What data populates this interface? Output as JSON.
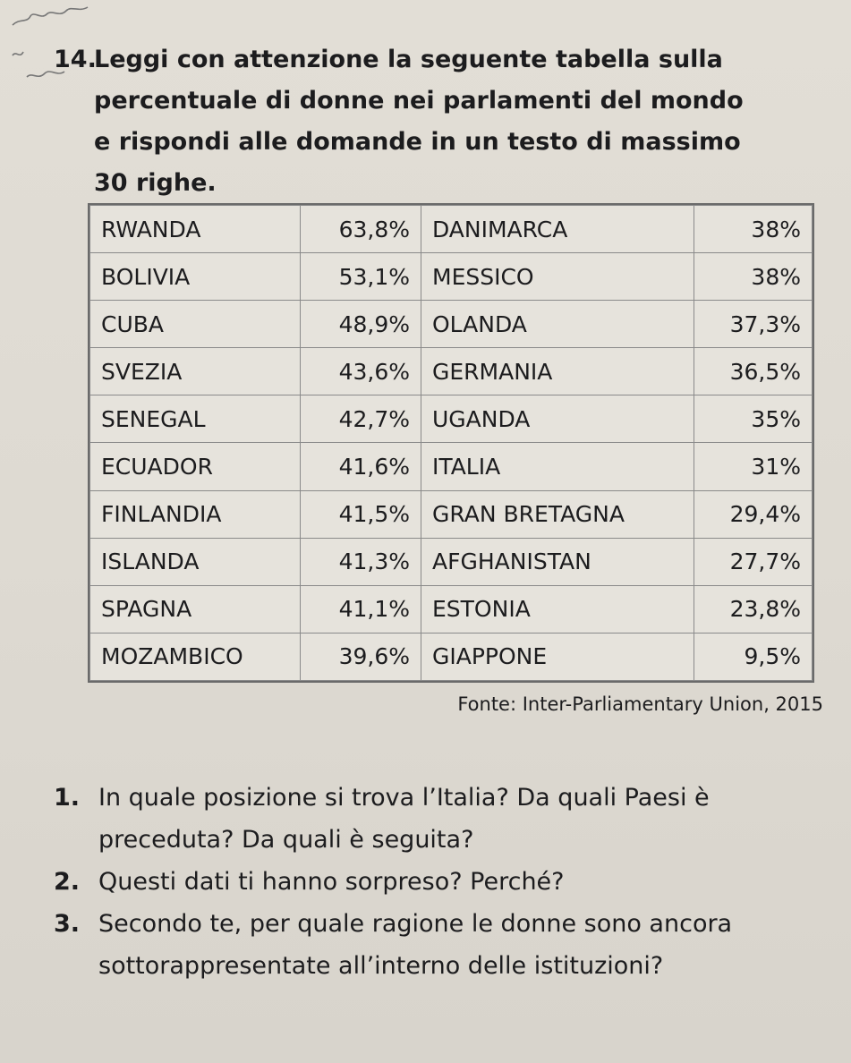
{
  "exercise": {
    "number": "14.",
    "lines": [
      "Leggi con attenzione la seguente tabella sulla",
      "percentuale di donne nei parlamenti del mondo",
      "e rispondi alle domande in un testo di massimo",
      "30 righe."
    ]
  },
  "table": {
    "rows": [
      {
        "left_country": "RWANDA",
        "left_value": "63,8%",
        "right_country": "DANIMARCA",
        "right_value": "38%"
      },
      {
        "left_country": "BOLIVIA",
        "left_value": "53,1%",
        "right_country": "MESSICO",
        "right_value": "38%"
      },
      {
        "left_country": "CUBA",
        "left_value": "48,9%",
        "right_country": "OLANDA",
        "right_value": "37,3%"
      },
      {
        "left_country": "SVEZIA",
        "left_value": "43,6%",
        "right_country": "GERMANIA",
        "right_value": "36,5%"
      },
      {
        "left_country": "SENEGAL",
        "left_value": "42,7%",
        "right_country": "UGANDA",
        "right_value": "35%"
      },
      {
        "left_country": "ECUADOR",
        "left_value": "41,6%",
        "right_country": "ITALIA",
        "right_value": "31%"
      },
      {
        "left_country": "FINLANDIA",
        "left_value": "41,5%",
        "right_country": "GRAN BRETAGNA",
        "right_value": "29,4%"
      },
      {
        "left_country": "ISLANDA",
        "left_value": "41,3%",
        "right_country": "AFGHANISTAN",
        "right_value": "27,7%"
      },
      {
        "left_country": "SPAGNA",
        "left_value": "41,1%",
        "right_country": "ESTONIA",
        "right_value": "23,8%"
      },
      {
        "left_country": "MOZAMBICO",
        "left_value": "39,6%",
        "right_country": "GIAPPONE",
        "right_value": "9,5%"
      }
    ]
  },
  "source": "Fonte: Inter-Parliamentary Union, 2015",
  "questions": [
    {
      "number": "1.",
      "text": "In quale posizione si trova l’Italia? Da quali Paesi è preceduta? Da quali è seguita?"
    },
    {
      "number": "2.",
      "text": "Questi dati ti hanno sorpreso? Perché?"
    },
    {
      "number": "3.",
      "text": "Secondo te, per quale ragione le donne sono ancora sottorappresentate all’interno delle istituzioni?"
    }
  ]
}
